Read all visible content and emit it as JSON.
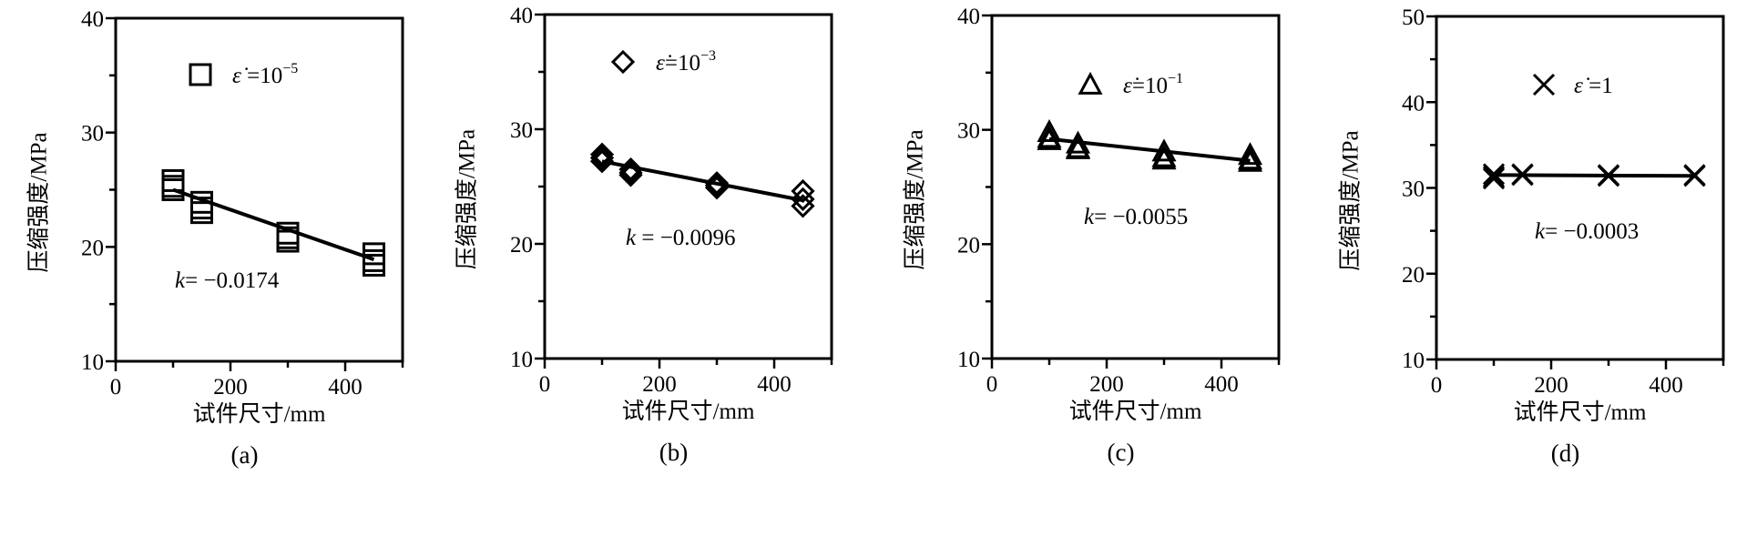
{
  "chart_data": [
    {
      "type": "scatter",
      "panel_label": "(a)",
      "xlabel": "试件尺寸/mm",
      "ylabel": "压缩强度/MPa",
      "xlim": [
        0,
        500
      ],
      "ylim": [
        10,
        40
      ],
      "xticks": [
        0,
        200,
        400
      ],
      "yticks": [
        10,
        20,
        30,
        40
      ],
      "marker": "square",
      "legend": {
        "symbol": "ε̇",
        "text": " =10",
        "sup": "−5"
      },
      "k_label": {
        "var": "k",
        "text": "= −0.0174"
      },
      "points": [
        [
          100,
          25.8
        ],
        [
          100,
          25.3
        ],
        [
          100,
          25.0
        ],
        [
          150,
          23.9
        ],
        [
          150,
          23.4
        ],
        [
          150,
          23.0
        ],
        [
          300,
          21.2
        ],
        [
          300,
          20.8
        ],
        [
          300,
          20.5
        ],
        [
          450,
          19.4
        ],
        [
          450,
          18.8
        ],
        [
          450,
          18.4
        ]
      ],
      "fit": {
        "slope": -0.0174,
        "x": [
          100,
          450
        ],
        "y": [
          25.0,
          18.9
        ]
      }
    },
    {
      "type": "scatter",
      "panel_label": "(b)",
      "xlabel": "试件尺寸/mm",
      "ylabel": "压缩强度/MPa",
      "xlim": [
        0,
        500
      ],
      "ylim": [
        10,
        40
      ],
      "xticks": [
        0,
        200,
        400
      ],
      "yticks": [
        10,
        20,
        30,
        40
      ],
      "marker": "diamond",
      "legend": {
        "symbol": "ε̇",
        "text": "=10",
        "sup": "−3"
      },
      "k_label": {
        "var": "k",
        "text": " = −0.0096"
      },
      "points": [
        [
          100,
          27.8
        ],
        [
          100,
          27.5
        ],
        [
          100,
          27.2
        ],
        [
          150,
          26.5
        ],
        [
          150,
          26.2
        ],
        [
          150,
          26.0
        ],
        [
          300,
          25.3
        ],
        [
          300,
          25.1
        ],
        [
          300,
          24.9
        ],
        [
          450,
          24.6
        ],
        [
          450,
          23.9
        ],
        [
          450,
          23.3
        ]
      ],
      "fit": {
        "slope": -0.0096,
        "x": [
          100,
          450
        ],
        "y": [
          27.2,
          23.8
        ]
      }
    },
    {
      "type": "scatter",
      "panel_label": "(c)",
      "xlabel": "试件尺寸/mm",
      "ylabel": "压缩强度/MPa",
      "xlim": [
        0,
        500
      ],
      "ylim": [
        10,
        40
      ],
      "xticks": [
        0,
        200,
        400
      ],
      "yticks": [
        10,
        20,
        30,
        40
      ],
      "marker": "triangle",
      "legend": {
        "symbol": "ε̇",
        "text": "=10",
        "sup": "−1"
      },
      "k_label": {
        "var": "k",
        "text": "= −0.0055"
      },
      "points": [
        [
          100,
          29.8
        ],
        [
          100,
          29.3
        ],
        [
          100,
          29.1
        ],
        [
          150,
          28.8
        ],
        [
          150,
          28.4
        ],
        [
          150,
          28.3
        ],
        [
          300,
          28.1
        ],
        [
          300,
          27.6
        ],
        [
          300,
          27.4
        ],
        [
          450,
          27.8
        ],
        [
          450,
          27.4
        ],
        [
          450,
          27.2
        ]
      ],
      "fit": {
        "slope": -0.0055,
        "x": [
          100,
          450
        ],
        "y": [
          29.2,
          27.3
        ]
      }
    },
    {
      "type": "scatter",
      "panel_label": "(d)",
      "xlabel": "试件尺寸/mm",
      "ylabel": "压缩强度/MPa",
      "xlim": [
        0,
        500
      ],
      "ylim": [
        10,
        50
      ],
      "xticks": [
        0,
        200,
        400
      ],
      "yticks": [
        10,
        20,
        30,
        40,
        50
      ],
      "marker": "cross",
      "legend": {
        "symbol": "ε̇",
        "text": " =1",
        "sup": ""
      },
      "k_label": {
        "var": "k",
        "text": "= −0.0003"
      },
      "points": [
        [
          100,
          31.6
        ],
        [
          100,
          31.3
        ],
        [
          100,
          31.1
        ],
        [
          150,
          31.6
        ],
        [
          150,
          31.5
        ],
        [
          300,
          31.5
        ],
        [
          300,
          31.4
        ],
        [
          450,
          31.5
        ],
        [
          450,
          31.4
        ]
      ],
      "fit": {
        "slope": -0.0003,
        "x": [
          100,
          450
        ],
        "y": [
          31.5,
          31.4
        ]
      }
    }
  ]
}
